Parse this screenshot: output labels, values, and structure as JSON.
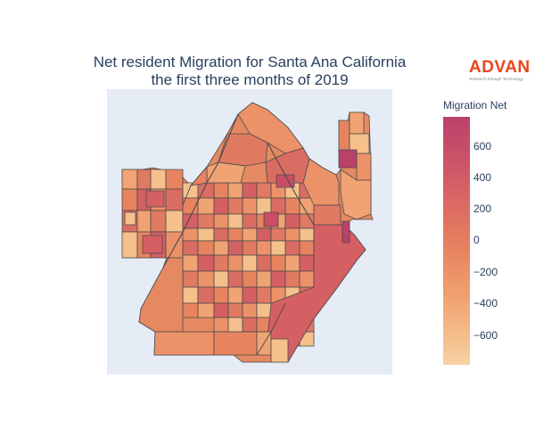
{
  "title": {
    "line1": "Net resident Migration for Santa Ana California",
    "line2": "the first three months of 2019"
  },
  "logo": {
    "word": "ADVAN",
    "tagline": "Research through Technology"
  },
  "colorbar": {
    "title": "Migration Net",
    "min": -780,
    "max": 780,
    "ticks": [
      "600",
      "400",
      "200",
      "0",
      "−200",
      "−400",
      "−600"
    ],
    "tick_values": [
      600,
      400,
      200,
      0,
      -200,
      -400,
      -600
    ],
    "colors": [
      "#f8d1a5",
      "#f5bd8a",
      "#f0a070",
      "#e7845f",
      "#dc6b63",
      "#cc5468",
      "#b9416a"
    ]
  },
  "colors": {
    "map_background": "#e5ecf6",
    "tract_border": "#4a4a4a",
    "title": "#2a3f5f",
    "logo": "#e8461e"
  }
}
